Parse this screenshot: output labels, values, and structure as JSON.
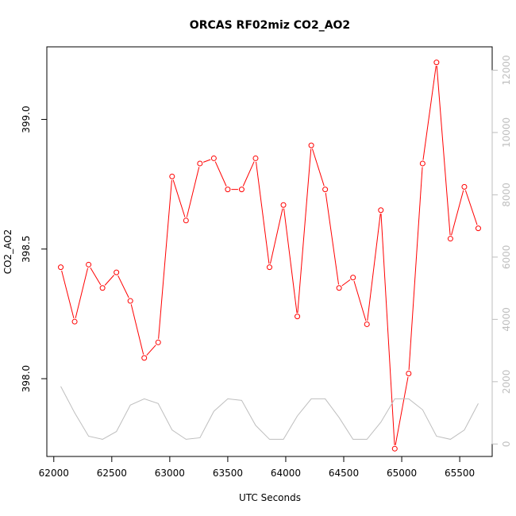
{
  "chart_data": {
    "type": "line",
    "title": "ORCAS RF02miz CO2_AO2",
    "xlabel": "UTC Seconds",
    "ylabel": "CO2_AO2",
    "xlim": [
      61940,
      65780
    ],
    "ylim": [
      397.7,
      399.28
    ],
    "y2lim": [
      -400,
      12750
    ],
    "x_ticks": [
      62000,
      62500,
      63000,
      63500,
      64000,
      64500,
      65000,
      65500
    ],
    "y_ticks": [
      398.0,
      398.5,
      399.0
    ],
    "y_tick_labels": [
      "398.0",
      "398.5",
      "399.0"
    ],
    "y2_ticks": [
      0,
      2000,
      4000,
      6000,
      8000,
      10000,
      12000
    ],
    "series": [
      {
        "axis": "left",
        "color": "#ff0000",
        "markers": "open-circle",
        "x": [
          62060,
          62180,
          62300,
          62420,
          62540,
          62660,
          62780,
          62900,
          63020,
          63140,
          63260,
          63380,
          63500,
          63620,
          63740,
          63860,
          63980,
          64100,
          64220,
          64340,
          64460,
          64580,
          64700,
          64820,
          64940,
          65060,
          65180,
          65300,
          65420,
          65540,
          65660
        ],
        "y": [
          398.43,
          398.22,
          398.44,
          398.35,
          398.41,
          398.3,
          398.08,
          398.14,
          398.78,
          398.61,
          398.83,
          398.85,
          398.73,
          398.73,
          398.85,
          398.43,
          398.67,
          398.24,
          398.9,
          398.73,
          398.35,
          398.39,
          398.21,
          398.65,
          397.73,
          398.02,
          398.83,
          399.22,
          398.54,
          398.74,
          398.58
        ]
      },
      {
        "axis": "right",
        "color": "#bebebe",
        "markers": "none",
        "x": [
          62060,
          62180,
          62300,
          62420,
          62540,
          62660,
          62780,
          62900,
          63020,
          63140,
          63260,
          63380,
          63500,
          63620,
          63740,
          63860,
          63980,
          64100,
          64220,
          64340,
          64460,
          64580,
          64700,
          64820,
          64940,
          65060,
          65180,
          65300,
          65420,
          65540,
          65660
        ],
        "y": [
          1850,
          1000,
          250,
          150,
          400,
          1250,
          1450,
          1300,
          450,
          150,
          200,
          1050,
          1450,
          1400,
          600,
          150,
          150,
          900,
          1450,
          1450,
          850,
          150,
          150,
          700,
          1450,
          1450,
          1100,
          250,
          150,
          450,
          1300
        ]
      }
    ]
  }
}
